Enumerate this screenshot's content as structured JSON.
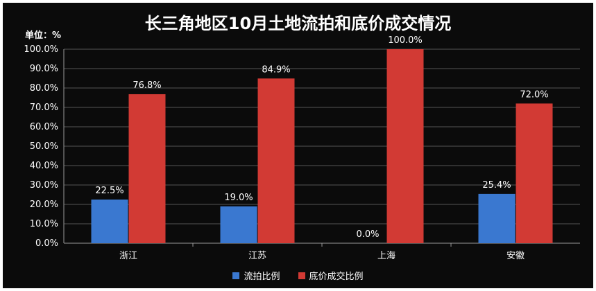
{
  "chart_data": {
    "type": "bar",
    "title": "长三角地区10月土地流拍和底价成交情况",
    "unit_label": "单位：%",
    "categories": [
      "浙江",
      "江苏",
      "上海",
      "安徽"
    ],
    "series": [
      {
        "name": "流拍比例",
        "values": [
          22.5,
          19.0,
          0.0,
          25.4
        ],
        "color": "#3a78d0"
      },
      {
        "name": "底价成交比例",
        "values": [
          76.8,
          84.9,
          100.0,
          72.0
        ],
        "color": "#d23a34"
      }
    ],
    "ylim": [
      0,
      100
    ],
    "ytick_step": 10,
    "ytick_format": "0.0%",
    "data_labels": true,
    "grid": true,
    "legend_position": "bottom"
  },
  "colors": {
    "background": "#0b0b0b",
    "gridline": "#555555",
    "axis": "#999999",
    "text": "#ffffff"
  }
}
